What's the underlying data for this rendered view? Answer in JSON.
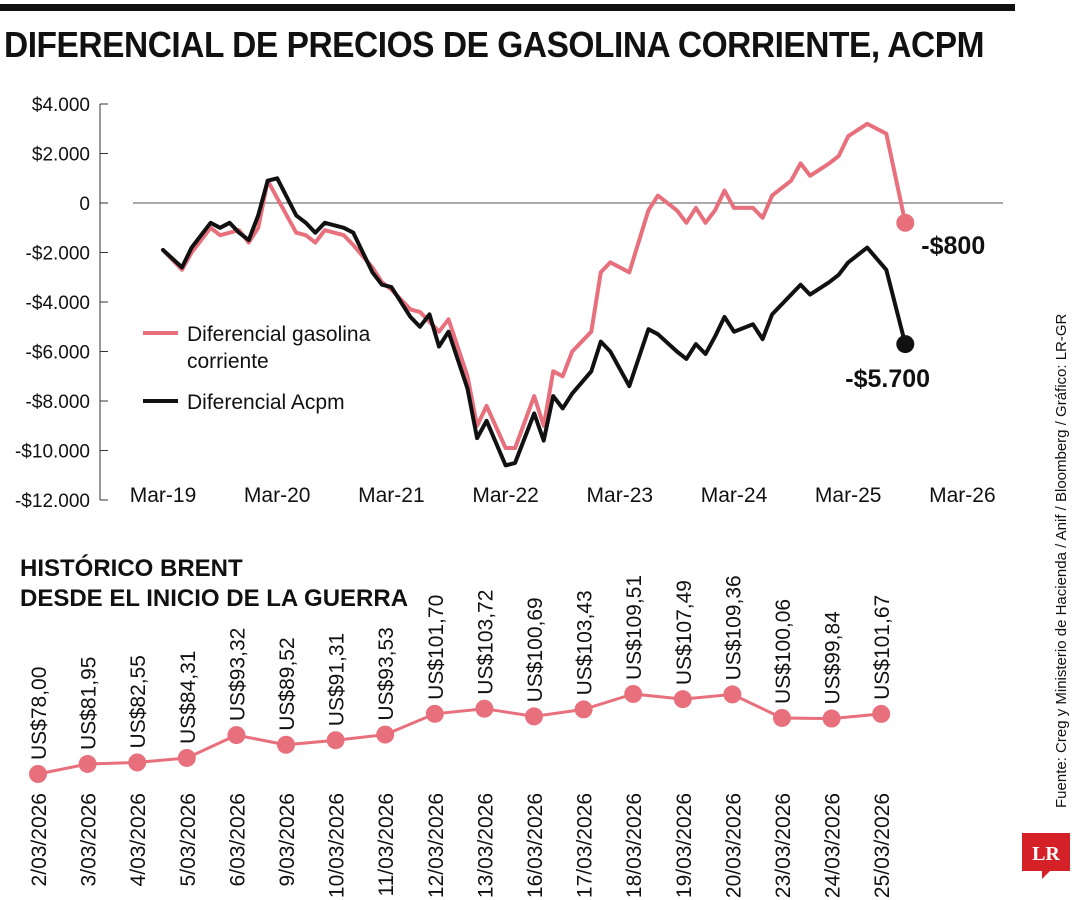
{
  "title": "DIFERENCIAL DE PRECIOS DE GASOLINA CORRIENTE, ACPM",
  "source": "Fuente: Creg y Ministerio de Hacienda / Anif / Bloomberg / Gráfico: LR-GR",
  "logo": "LR",
  "colors": {
    "gasolina": "#e8707d",
    "acpm": "#111111",
    "brent": "#e8707d"
  },
  "chart_data": [
    {
      "type": "line",
      "title": "DIFERENCIAL DE PRECIOS DE GASOLINA CORRIENTE, ACPM",
      "x_ticks": [
        "Mar-19",
        "Mar-20",
        "Mar-21",
        "Mar-22",
        "Mar-23",
        "Mar-24",
        "Mar-25",
        "Mar-26"
      ],
      "y_ticks": [
        4000,
        2000,
        0,
        -2000,
        -4000,
        -6000,
        -8000,
        -10000,
        -12000
      ],
      "y_tick_labels": [
        "$4.000",
        "$2.000",
        "0",
        "-$2.000",
        "-$4.000",
        "-$6.000",
        "-$8.000",
        "-$10.000",
        "-$12.000"
      ],
      "ylim": [
        -12000,
        4000
      ],
      "legend_position": "left",
      "series": [
        {
          "name": "Diferencial gasolina corriente",
          "points": [
            [
              "2019-03",
              -1900
            ],
            [
              "2019-05",
              -2700
            ],
            [
              "2019-06",
              -2000
            ],
            [
              "2019-08",
              -1000
            ],
            [
              "2019-09",
              -1300
            ],
            [
              "2019-11",
              -1100
            ],
            [
              "2019-12",
              -1600
            ],
            [
              "2020-01",
              -1000
            ],
            [
              "2020-02",
              900
            ],
            [
              "2020-03",
              200
            ],
            [
              "2020-05",
              -1200
            ],
            [
              "2020-06",
              -1300
            ],
            [
              "2020-07",
              -1600
            ],
            [
              "2020-08",
              -1100
            ],
            [
              "2020-10",
              -1300
            ],
            [
              "2020-11",
              -1700
            ],
            [
              "2021-01",
              -2600
            ],
            [
              "2021-02",
              -3200
            ],
            [
              "2021-03",
              -3500
            ],
            [
              "2021-05",
              -4300
            ],
            [
              "2021-06",
              -4400
            ],
            [
              "2021-08",
              -5200
            ],
            [
              "2021-09",
              -4700
            ],
            [
              "2021-11",
              -7000
            ],
            [
              "2021-12",
              -9000
            ],
            [
              "2022-01",
              -8200
            ],
            [
              "2022-03",
              -9900
            ],
            [
              "2022-04",
              -9900
            ],
            [
              "2022-06",
              -7800
            ],
            [
              "2022-07",
              -9000
            ],
            [
              "2022-08",
              -6800
            ],
            [
              "2022-09",
              -7000
            ],
            [
              "2022-10",
              -6000
            ],
            [
              "2022-12",
              -5200
            ],
            [
              "2023-01",
              -2800
            ],
            [
              "2023-02",
              -2400
            ],
            [
              "2023-04",
              -2800
            ],
            [
              "2023-06",
              -300
            ],
            [
              "2023-07",
              300
            ],
            [
              "2023-09",
              -300
            ],
            [
              "2023-10",
              -800
            ],
            [
              "2023-11",
              -200
            ],
            [
              "2023-12",
              -800
            ],
            [
              "2024-01",
              -300
            ],
            [
              "2024-02",
              500
            ],
            [
              "2024-03",
              -200
            ],
            [
              "2024-05",
              -200
            ],
            [
              "2024-06",
              -600
            ],
            [
              "2024-07",
              300
            ],
            [
              "2024-09",
              900
            ],
            [
              "2024-10",
              1600
            ],
            [
              "2024-11",
              1100
            ],
            [
              "2025-01",
              1600
            ],
            [
              "2025-02",
              1900
            ],
            [
              "2025-03",
              2700
            ],
            [
              "2025-05",
              3200
            ],
            [
              "2025-07",
              2800
            ],
            [
              "2025-09",
              -800
            ]
          ],
          "end_label": "-$800"
        },
        {
          "name": "Diferencial Acpm",
          "points": [
            [
              "2019-03",
              -1900
            ],
            [
              "2019-05",
              -2600
            ],
            [
              "2019-06",
              -1800
            ],
            [
              "2019-08",
              -800
            ],
            [
              "2019-09",
              -1000
            ],
            [
              "2019-10",
              -800
            ],
            [
              "2019-11",
              -1200
            ],
            [
              "2019-12",
              -1500
            ],
            [
              "2020-01",
              -500
            ],
            [
              "2020-02",
              900
            ],
            [
              "2020-03",
              1000
            ],
            [
              "2020-05",
              -500
            ],
            [
              "2020-06",
              -800
            ],
            [
              "2020-07",
              -1200
            ],
            [
              "2020-08",
              -800
            ],
            [
              "2020-10",
              -1000
            ],
            [
              "2020-11",
              -1200
            ],
            [
              "2021-01",
              -2800
            ],
            [
              "2021-02",
              -3300
            ],
            [
              "2021-03",
              -3400
            ],
            [
              "2021-05",
              -4600
            ],
            [
              "2021-06",
              -5000
            ],
            [
              "2021-07",
              -4500
            ],
            [
              "2021-08",
              -5800
            ],
            [
              "2021-09",
              -5200
            ],
            [
              "2021-11",
              -7500
            ],
            [
              "2021-12",
              -9500
            ],
            [
              "2022-01",
              -8800
            ],
            [
              "2022-03",
              -10600
            ],
            [
              "2022-04",
              -10500
            ],
            [
              "2022-06",
              -8500
            ],
            [
              "2022-07",
              -9600
            ],
            [
              "2022-08",
              -7800
            ],
            [
              "2022-09",
              -8300
            ],
            [
              "2022-10",
              -7700
            ],
            [
              "2022-12",
              -6800
            ],
            [
              "2023-01",
              -5600
            ],
            [
              "2023-02",
              -6000
            ],
            [
              "2023-04",
              -7400
            ],
            [
              "2023-06",
              -5100
            ],
            [
              "2023-07",
              -5300
            ],
            [
              "2023-09",
              -6000
            ],
            [
              "2023-10",
              -6300
            ],
            [
              "2023-11",
              -5700
            ],
            [
              "2023-12",
              -6100
            ],
            [
              "2024-01",
              -5400
            ],
            [
              "2024-02",
              -4600
            ],
            [
              "2024-03",
              -5200
            ],
            [
              "2024-05",
              -4900
            ],
            [
              "2024-06",
              -5500
            ],
            [
              "2024-07",
              -4500
            ],
            [
              "2024-09",
              -3700
            ],
            [
              "2024-10",
              -3300
            ],
            [
              "2024-11",
              -3700
            ],
            [
              "2025-01",
              -3200
            ],
            [
              "2025-02",
              -2900
            ],
            [
              "2025-03",
              -2400
            ],
            [
              "2025-05",
              -1800
            ],
            [
              "2025-07",
              -2700
            ],
            [
              "2025-09",
              -5700
            ]
          ],
          "end_label": "-$5.700"
        }
      ]
    },
    {
      "type": "line",
      "title": "HISTÓRICO BRENT DESDE EL INICIO DE LA GUERRA",
      "title_lines": [
        "HISTÓRICO BRENT",
        "DESDE EL INICIO DE LA GUERRA"
      ],
      "categories": [
        "2/03/2026",
        "3/03/2026",
        "4/03/2026",
        "5/03/2026",
        "6/03/2026",
        "9/03/2026",
        "10/03/2026",
        "11/03/2026",
        "12/03/2026",
        "13/03/2026",
        "16/03/2026",
        "17/03/2026",
        "18/03/2026",
        "19/03/2026",
        "20/03/2026",
        "23/03/2026",
        "24/03/2026",
        "25/03/2026"
      ],
      "values": [
        78.0,
        81.95,
        82.55,
        84.31,
        93.32,
        89.52,
        91.31,
        93.53,
        101.7,
        103.72,
        100.69,
        103.43,
        109.51,
        107.49,
        109.36,
        100.06,
        99.84,
        101.67
      ],
      "labels": [
        "US$78,00",
        "US$81,95",
        "US$82,55",
        "US$84,31",
        "US$93,32",
        "US$89,52",
        "US$91,31",
        "US$93,53",
        "US$101,70",
        "US$103,72",
        "US$100,69",
        "US$103,43",
        "US$109,51",
        "US$107,49",
        "US$109,36",
        "US$100,06",
        "US$99,84",
        "US$101,67"
      ]
    }
  ]
}
